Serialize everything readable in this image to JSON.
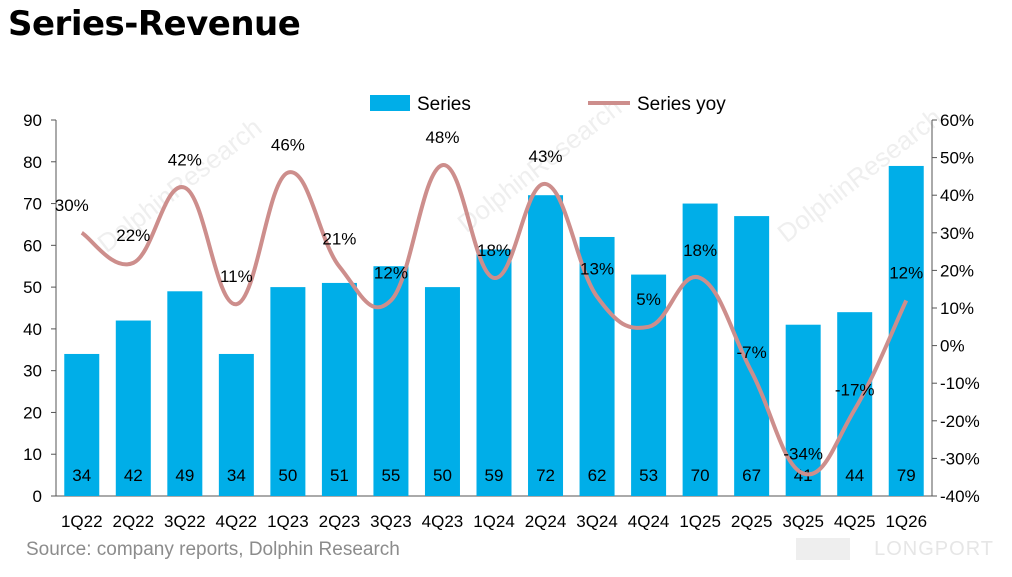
{
  "title": "Series-Revenue",
  "source": "Source: company reports, Dolphin Research",
  "watermark": "DolphinResearch",
  "brand": "LONGPORT",
  "colors": {
    "bar": "#00aee8",
    "line": "#cd8e8c",
    "text": "#000000",
    "axis": "#555555"
  },
  "chart_data": {
    "type": "bar",
    "categories": [
      "1Q22",
      "2Q22",
      "3Q22",
      "4Q22",
      "1Q23",
      "2Q23",
      "3Q23",
      "4Q23",
      "1Q24",
      "2Q24",
      "3Q24",
      "4Q24",
      "1Q25",
      "2Q25",
      "3Q25",
      "4Q25",
      "1Q26"
    ],
    "series": [
      {
        "name": "Series",
        "type": "bar",
        "axis": "left",
        "values": [
          34,
          42,
          49,
          34,
          50,
          51,
          55,
          50,
          59,
          72,
          62,
          53,
          70,
          67,
          41,
          44,
          79
        ],
        "labels": [
          "34",
          "42",
          "49",
          "34",
          "50",
          "51",
          "55",
          "50",
          "59",
          "72",
          "62",
          "53",
          "70",
          "67",
          "41",
          "44",
          "79"
        ]
      },
      {
        "name": "Series yoy",
        "type": "line",
        "axis": "right",
        "values": [
          30,
          22,
          42,
          11,
          46,
          21,
          12,
          48,
          18,
          43,
          13,
          5,
          18,
          -7,
          -34,
          -17,
          12
        ],
        "labels": [
          "30%",
          "22%",
          "42%",
          "11%",
          "46%",
          "21%",
          "12%",
          "48%",
          "18%",
          "43%",
          "13%",
          "5%",
          "18%",
          "-7%",
          "-34%",
          "-17%",
          "12%"
        ]
      }
    ],
    "y_left": {
      "min": 0,
      "max": 90,
      "ticks": [
        "0",
        "10",
        "20",
        "30",
        "40",
        "50",
        "60",
        "70",
        "80",
        "90"
      ]
    },
    "y_right": {
      "min": -40,
      "max": 60,
      "ticks": [
        "-40%",
        "-30%",
        "-20%",
        "-10%",
        "0%",
        "10%",
        "20%",
        "30%",
        "40%",
        "50%",
        "60%"
      ]
    },
    "legend_position": "top-center",
    "grid": false
  }
}
